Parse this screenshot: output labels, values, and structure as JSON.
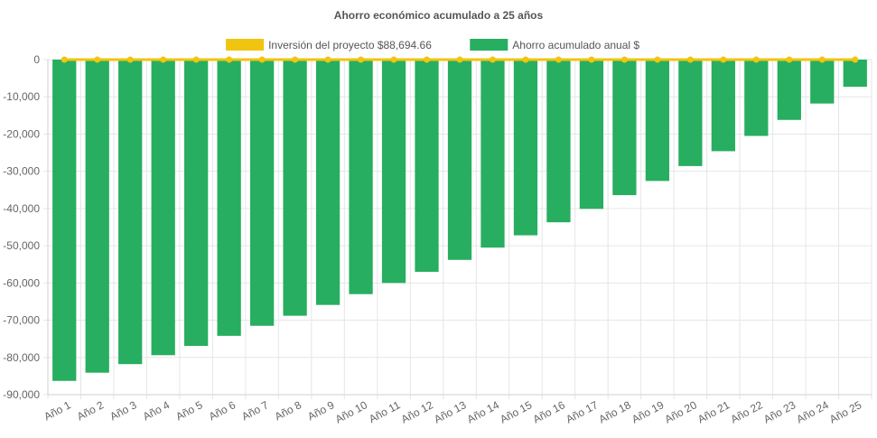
{
  "chart_data": {
    "type": "bar",
    "title": "Ahorro económico acumulado a 25 años",
    "xlabel": "",
    "ylabel": "",
    "ylim": [
      -90000,
      0
    ],
    "yticks": [
      0,
      -10000,
      -20000,
      -30000,
      -40000,
      -50000,
      -60000,
      -70000,
      -80000,
      -90000
    ],
    "ytick_labels": [
      "0",
      "-10,000",
      "-20,000",
      "-30,000",
      "-40,000",
      "-50,000",
      "-60,000",
      "-70,000",
      "-80,000",
      "-90,000"
    ],
    "grid": true,
    "legend_position": "top",
    "categories": [
      "Año 1",
      "Año 2",
      "Año 3",
      "Año 4",
      "Año 5",
      "Año 6",
      "Año 7",
      "Año 8",
      "Año 9",
      "Año 10",
      "Año 11",
      "Año 12",
      "Año 13",
      "Año 14",
      "Año 15",
      "Año 16",
      "Año 17",
      "Año 18",
      "Año 19",
      "Año 20",
      "Año 21",
      "Año 22",
      "Año 23",
      "Año 24",
      "Año 25"
    ],
    "series": [
      {
        "name": "Inversión del proyecto $88,694.66",
        "type": "line",
        "color": "#f1c40f",
        "values": [
          0,
          0,
          0,
          0,
          0,
          0,
          0,
          0,
          0,
          0,
          0,
          0,
          0,
          0,
          0,
          0,
          0,
          0,
          0,
          0,
          0,
          0,
          0,
          0,
          0
        ]
      },
      {
        "name": "Ahorro acumulado anual $",
        "type": "bar",
        "color": "#27ae60",
        "values": [
          -86300,
          -84100,
          -81800,
          -79400,
          -76900,
          -74200,
          -71500,
          -68800,
          -65900,
          -63000,
          -60000,
          -57000,
          -53800,
          -50500,
          -47200,
          -43700,
          -40100,
          -36400,
          -32600,
          -28600,
          -24600,
          -20500,
          -16200,
          -11800,
          -7300
        ]
      }
    ]
  }
}
